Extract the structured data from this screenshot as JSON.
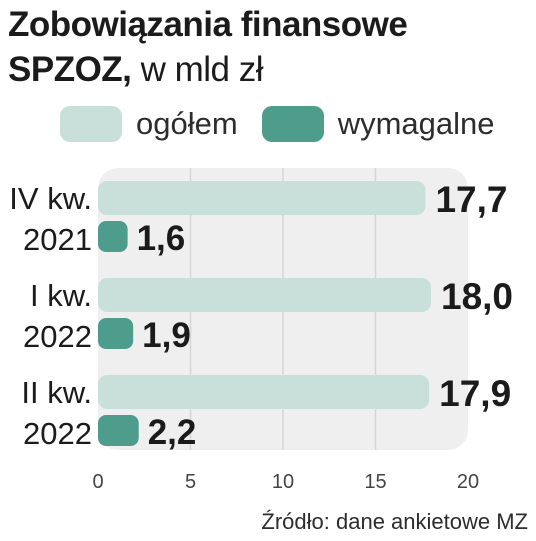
{
  "title": {
    "bold": "Zobowiązania finansowe",
    "bold2": "SPZOZ,",
    "light": " w mld zł"
  },
  "legend": [
    {
      "label": "ogółem",
      "color": "#c9e0da"
    },
    {
      "label": "wymagalne",
      "color": "#4e9c8c"
    }
  ],
  "source": "Źródło: dane ankietowe MZ",
  "colors": {
    "panel": "#efefef",
    "grid": "#d6d6d6",
    "ogolem": "#c9e0da",
    "wymagalne": "#4e9c8c",
    "text": "#1b1b1b"
  },
  "chart_data": {
    "type": "bar",
    "orientation": "horizontal",
    "categories": [
      [
        "IV kw.",
        "2021"
      ],
      [
        "I kw.",
        "2022"
      ],
      [
        "II kw.",
        "2022"
      ]
    ],
    "series": [
      {
        "name": "ogółem",
        "values": [
          17.7,
          18.0,
          17.9
        ],
        "labels": [
          "17,7",
          "18,0",
          "17,9"
        ]
      },
      {
        "name": "wymagalne",
        "values": [
          1.6,
          1.9,
          2.2
        ],
        "labels": [
          "1,6",
          "1,9",
          "2,2"
        ]
      }
    ],
    "xlim": [
      0,
      20
    ],
    "xticks": [
      0,
      5,
      10,
      15,
      20
    ],
    "grid": true,
    "legend_position": "top"
  }
}
